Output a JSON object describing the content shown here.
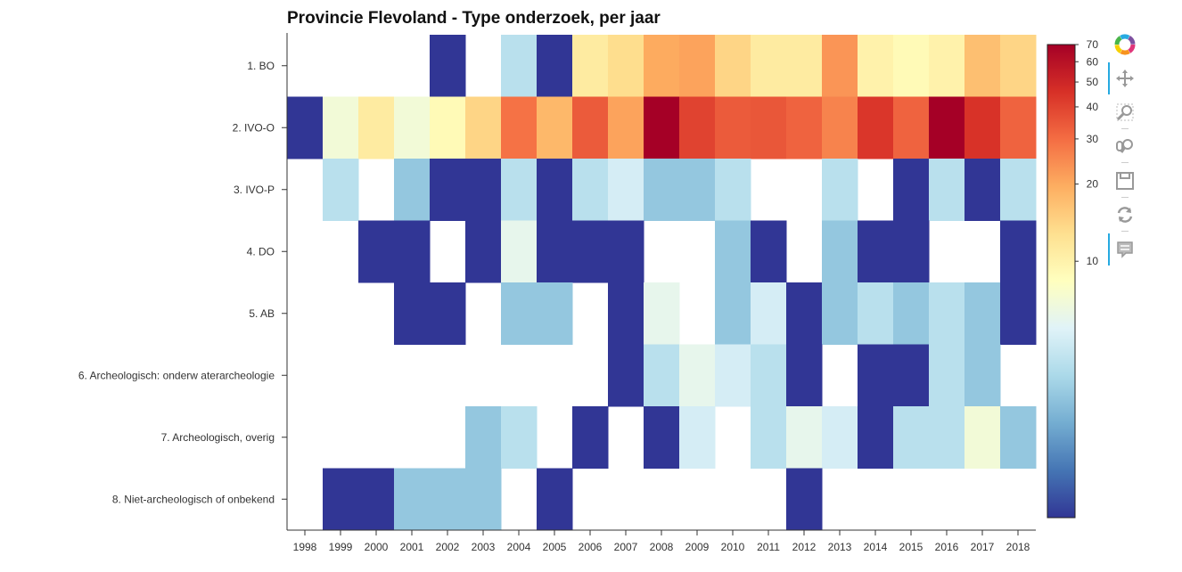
{
  "title": "Provincie Flevoland - Type onderzoek, per jaar",
  "toolbar": {
    "tools": [
      "logo-icon",
      "pan-icon",
      "box-zoom-icon",
      "wheel-zoom-icon",
      "save-icon",
      "reset-icon",
      "hover-icon"
    ]
  },
  "chart_data": {
    "type": "heatmap",
    "title": "Provincie Flevoland - Type onderzoek, per jaar",
    "xlabel": "",
    "ylabel": "",
    "x": [
      "1998",
      "1999",
      "2000",
      "2001",
      "2002",
      "2003",
      "2004",
      "2005",
      "2006",
      "2007",
      "2008",
      "2009",
      "2010",
      "2011",
      "2012",
      "2013",
      "2014",
      "2015",
      "2016",
      "2017",
      "2018"
    ],
    "y": [
      "1. BO",
      "2. IVO-O",
      "3. IVO-P",
      "4. DO",
      "5. AB",
      "6. Archeologisch: onderw aterarcheologie",
      "7. Archeologisch, overig",
      "8. Niet-archeologisch of onbekend"
    ],
    "colorbar": {
      "scale": "log",
      "ticks": [
        10,
        20,
        30,
        40,
        50,
        60,
        70
      ],
      "min": 1,
      "max": 70,
      "palette": "RdYlBu (reversed)"
    },
    "values": [
      [
        null,
        null,
        null,
        null,
        1,
        null,
        4,
        1,
        11,
        13,
        20,
        21,
        14,
        11,
        11,
        23,
        10,
        9,
        10,
        17,
        14
      ],
      [
        1,
        7,
        11,
        7,
        9,
        14,
        29,
        18,
        34,
        21,
        70,
        40,
        34,
        35,
        32,
        26,
        44,
        32,
        70,
        45,
        32
      ],
      [
        null,
        4,
        null,
        3,
        1,
        1,
        4,
        1,
        4,
        5,
        3,
        3,
        4,
        null,
        null,
        4,
        null,
        1,
        4,
        1,
        4
      ],
      [
        null,
        null,
        1,
        1,
        null,
        1,
        6,
        1,
        1,
        1,
        null,
        null,
        3,
        1,
        null,
        3,
        1,
        1,
        null,
        null,
        1
      ],
      [
        null,
        null,
        null,
        1,
        1,
        null,
        3,
        3,
        null,
        1,
        6,
        null,
        3,
        5,
        1,
        3,
        4,
        3,
        4,
        3,
        1
      ],
      [
        null,
        null,
        null,
        null,
        null,
        null,
        null,
        null,
        null,
        1,
        4,
        6,
        5,
        4,
        1,
        null,
        1,
        1,
        4,
        3,
        null
      ],
      [
        null,
        null,
        null,
        null,
        null,
        3,
        4,
        null,
        1,
        null,
        1,
        5,
        null,
        4,
        6,
        5,
        1,
        4,
        4,
        7,
        3
      ],
      [
        null,
        1,
        1,
        3,
        3,
        3,
        null,
        1,
        null,
        null,
        null,
        null,
        null,
        null,
        1,
        null,
        null,
        null,
        null,
        null,
        null
      ]
    ]
  }
}
